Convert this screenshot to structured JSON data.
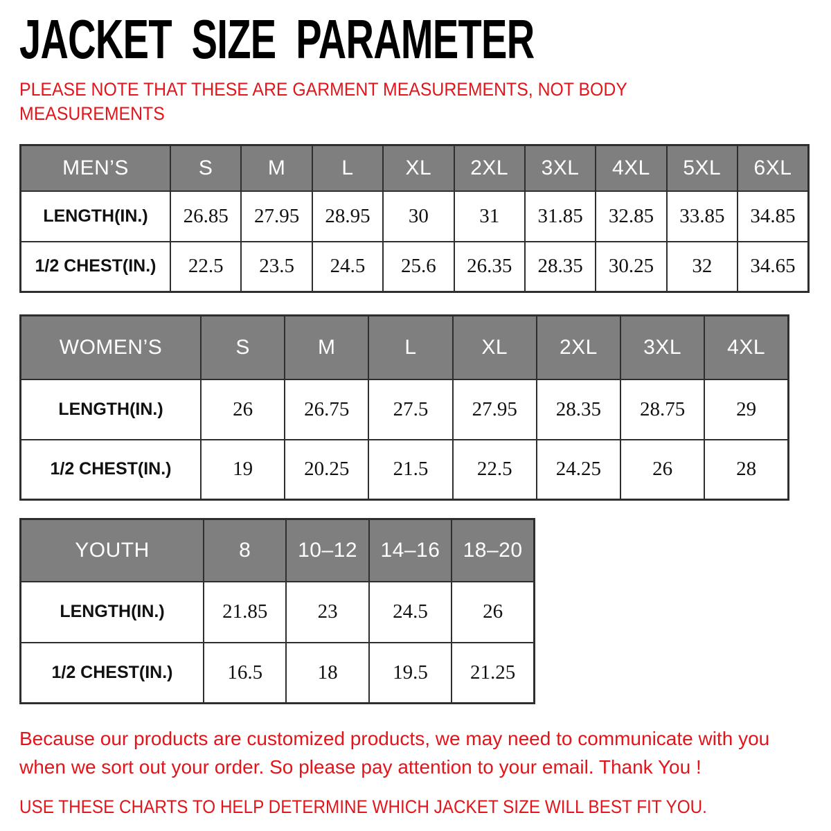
{
  "page": {
    "title": "JACKET SIZE PARAMETER",
    "note_top": {
      "line1": "PLEASE NOTE THAT THESE ARE GARMENT MEASUREMENTS, NOT BODY",
      "line2": "MEASUREMENTS"
    },
    "note_bottom": {
      "line1": "Because our products are customized products, we may need to communicate with you",
      "line2": "when we sort out your order. So please pay attention to your email. Thank You !",
      "line3": "USE THESE CHARTS TO HELP DETERMINE WHICH JACKET SIZE WILL BEST FIT YOU."
    },
    "colors": {
      "accent_red": "#e2151b",
      "header_grey": "#7f7f7f",
      "border_dark": "#2e2e2e",
      "text_black": "#111111"
    }
  },
  "chart_data": {
    "type": "table",
    "title": "JACKET SIZE PARAMETER",
    "tables": [
      {
        "group": "MEN’S",
        "sizes": [
          "S",
          "M",
          "L",
          "XL",
          "2XL",
          "3XL",
          "4XL",
          "5XL",
          "6XL"
        ],
        "rows": [
          {
            "label": "LENGTH(IN.)",
            "values": [
              "26.85",
              "27.95",
              "28.95",
              "30",
              "31",
              "31.85",
              "32.85",
              "33.85",
              "34.85"
            ]
          },
          {
            "label": "1/2 CHEST(IN.)",
            "values": [
              "22.5",
              "23.5",
              "24.5",
              "25.6",
              "26.35",
              "28.35",
              "30.25",
              "32",
              "34.65"
            ]
          }
        ]
      },
      {
        "group": "WOMEN’S",
        "sizes": [
          "S",
          "M",
          "L",
          "XL",
          "2XL",
          "3XL",
          "4XL"
        ],
        "rows": [
          {
            "label": "LENGTH(IN.)",
            "values": [
              "26",
              "26.75",
              "27.5",
              "27.95",
              "28.35",
              "28.75",
              "29"
            ]
          },
          {
            "label": "1/2 CHEST(IN.)",
            "values": [
              "19",
              "20.25",
              "21.5",
              "22.5",
              "24.25",
              "26",
              "28"
            ]
          }
        ]
      },
      {
        "group": "YOUTH",
        "sizes": [
          "8",
          "10–12",
          "14–16",
          "18–20"
        ],
        "rows": [
          {
            "label": "LENGTH(IN.)",
            "values": [
              "21.85",
              "23",
              "24.5",
              "26"
            ]
          },
          {
            "label": "1/2 CHEST(IN.)",
            "values": [
              "16.5",
              "18",
              "19.5",
              "21.25"
            ]
          }
        ]
      }
    ]
  }
}
